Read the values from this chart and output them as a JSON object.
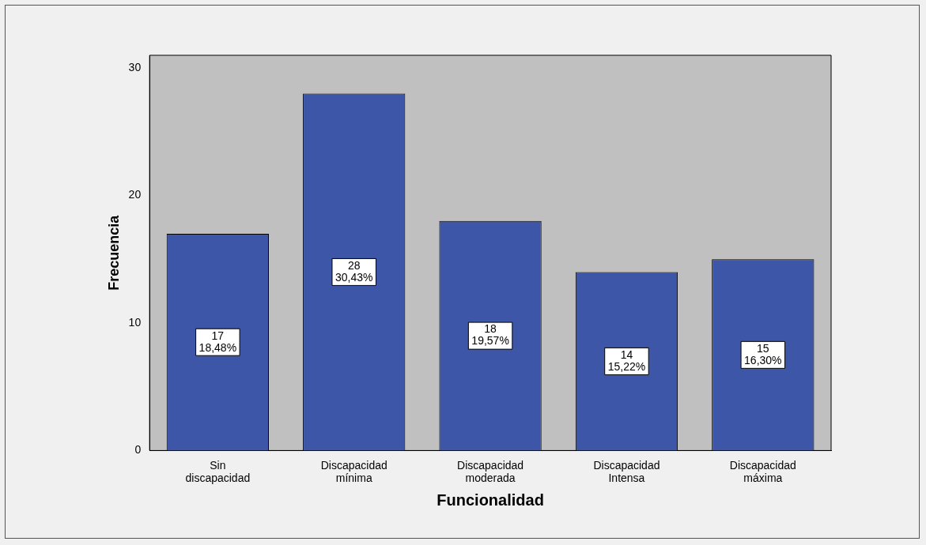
{
  "chart_data": {
    "type": "bar",
    "xlabel": "Funcionalidad",
    "ylabel": "Frecuencia",
    "categories": [
      "Sin discapacidad",
      "Discapacidad mínima",
      "Discapacidad moderada",
      "Discapacidad Intensa",
      "Discapacidad máxima"
    ],
    "values": [
      17,
      28,
      18,
      14,
      15
    ],
    "color": "#3d56a8",
    "value_labels": [
      "17\n18,48%",
      "28\n30,43%",
      "18\n19,57%",
      "14\n15,22%",
      "15\n16,30%"
    ],
    "ylim": [
      0,
      31
    ],
    "yticks": [
      0,
      10,
      20,
      30
    ],
    "grid": false,
    "legend": false
  }
}
